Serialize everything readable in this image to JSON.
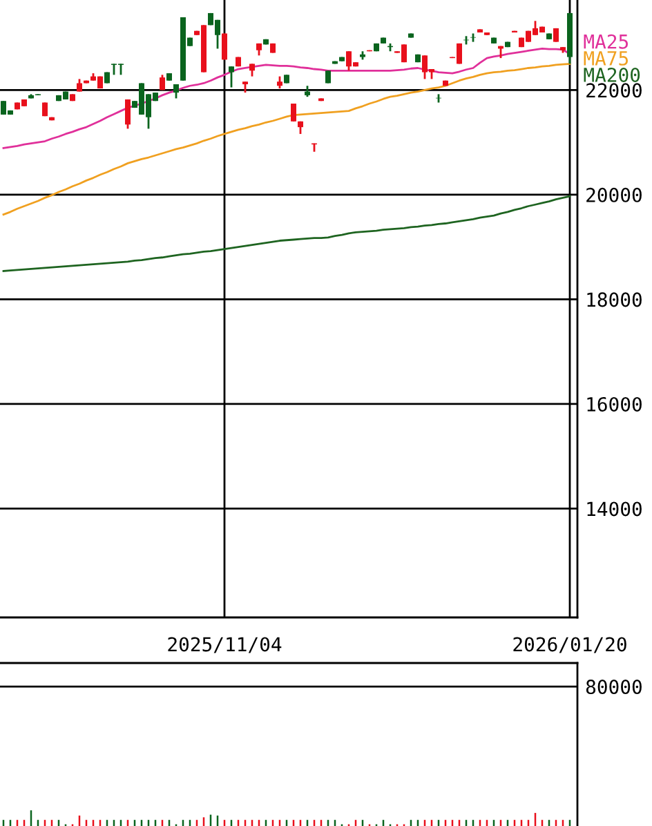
{
  "chart_data": [
    {
      "type": "candlestick",
      "categories": [
        null,
        null,
        null,
        null,
        null,
        null,
        null,
        null,
        null,
        null,
        null,
        null,
        null,
        null,
        null,
        null,
        null,
        null,
        null,
        null,
        null,
        null,
        null,
        null,
        null,
        null,
        null,
        null,
        null,
        null,
        null,
        null,
        "2025/11/04",
        null,
        null,
        null,
        null,
        null,
        null,
        null,
        null,
        null,
        null,
        null,
        null,
        null,
        null,
        null,
        null,
        null,
        null,
        null,
        null,
        null,
        null,
        null,
        null,
        null,
        null,
        null,
        null,
        null,
        null,
        null,
        null,
        null,
        null,
        null,
        null,
        null,
        null,
        null,
        null,
        null,
        null,
        null,
        null,
        null,
        null,
        null,
        null,
        null,
        "2026/01/20"
      ],
      "ohlc": [
        [
          21790,
          21790,
          21530,
          21530
        ],
        [
          21610,
          21610,
          21530,
          21530
        ],
        [
          21630,
          21760,
          21630,
          21760
        ],
        [
          21690,
          21820,
          21690,
          21820
        ],
        [
          21900,
          21920,
          21840,
          21840
        ],
        [
          21920,
          21920,
          21900,
          21900
        ],
        [
          21500,
          21760,
          21500,
          21760
        ],
        [
          21420,
          21480,
          21420,
          21480
        ],
        [
          21900,
          21900,
          21790,
          21790
        ],
        [
          21970,
          21970,
          21820,
          21820
        ],
        [
          21790,
          21920,
          21790,
          21920
        ],
        [
          21970,
          22210,
          21970,
          22130
        ],
        [
          22130,
          22180,
          22130,
          22180
        ],
        [
          22180,
          22320,
          22180,
          22260
        ],
        [
          22030,
          22260,
          22030,
          22260
        ],
        [
          22340,
          22340,
          22130,
          22130
        ],
        [
          22500,
          22500,
          22290,
          22480
        ],
        [
          22500,
          22500,
          22290,
          22480
        ],
        [
          21340,
          21820,
          21260,
          21820
        ],
        [
          21790,
          21790,
          21660,
          21660
        ],
        [
          22130,
          22130,
          21530,
          21530
        ],
        [
          21920,
          21920,
          21260,
          21480
        ],
        [
          21950,
          21950,
          21790,
          21790
        ],
        [
          22000,
          22290,
          22000,
          22240
        ],
        [
          22320,
          22320,
          22180,
          22180
        ],
        [
          22110,
          22110,
          21840,
          21950
        ],
        [
          23390,
          23390,
          22180,
          22180
        ],
        [
          23000,
          23000,
          22840,
          22840
        ],
        [
          23050,
          23130,
          23050,
          23130
        ],
        [
          22340,
          23240,
          22340,
          23240
        ],
        [
          23470,
          23470,
          23240,
          23240
        ],
        [
          23340,
          23340,
          22790,
          23050
        ],
        [
          22580,
          23080,
          22580,
          23080
        ],
        [
          22450,
          22450,
          22050,
          22340
        ],
        [
          22450,
          22630,
          22450,
          22630
        ],
        [
          22110,
          22160,
          21950,
          22160
        ],
        [
          22370,
          22500,
          22260,
          22500
        ],
        [
          22760,
          22890,
          22660,
          22890
        ],
        [
          22970,
          22970,
          22870,
          22870
        ],
        [
          22710,
          22890,
          22710,
          22890
        ],
        [
          22080,
          22260,
          22030,
          22160
        ],
        [
          22290,
          22290,
          22130,
          22130
        ],
        [
          21400,
          21740,
          21400,
          21740
        ],
        [
          21290,
          21400,
          21160,
          21400
        ],
        [
          21970,
          22080,
          21870,
          21900
        ],
        [
          20960,
          20980,
          20820,
          20980
        ],
        [
          21790,
          21840,
          21790,
          21840
        ],
        [
          22370,
          22370,
          22130,
          22130
        ],
        [
          22550,
          22550,
          22500,
          22500
        ],
        [
          22630,
          22630,
          22550,
          22550
        ],
        [
          22450,
          22740,
          22370,
          22740
        ],
        [
          22450,
          22530,
          22450,
          22530
        ],
        [
          22680,
          22740,
          22580,
          22630
        ],
        [
          22740,
          22760,
          22740,
          22760
        ],
        [
          22890,
          22890,
          22740,
          22740
        ],
        [
          23000,
          23000,
          22890,
          22890
        ],
        [
          22840,
          22890,
          22740,
          22820
        ],
        [
          22710,
          22740,
          22710,
          22740
        ],
        [
          22530,
          22870,
          22530,
          22870
        ],
        [
          23080,
          23080,
          23000,
          23000
        ],
        [
          22680,
          22680,
          22530,
          22530
        ],
        [
          22340,
          22660,
          22210,
          22660
        ],
        [
          22340,
          22400,
          22210,
          22400
        ],
        [
          21850,
          21920,
          21760,
          21840
        ],
        [
          22080,
          22180,
          22080,
          22180
        ],
        [
          22610,
          22630,
          22610,
          22630
        ],
        [
          22500,
          22890,
          22500,
          22890
        ],
        [
          22960,
          23030,
          22870,
          22950
        ],
        [
          23010,
          23080,
          22920,
          23000
        ],
        [
          23100,
          23160,
          23100,
          23160
        ],
        [
          23050,
          23100,
          23050,
          23100
        ],
        [
          23000,
          23000,
          22890,
          22890
        ],
        [
          22790,
          22840,
          22610,
          22840
        ],
        [
          22920,
          22920,
          22820,
          22820
        ],
        [
          23100,
          23130,
          23100,
          23130
        ],
        [
          22820,
          23000,
          22820,
          23000
        ],
        [
          22920,
          23130,
          22920,
          23130
        ],
        [
          23050,
          23320,
          23050,
          23180
        ],
        [
          23100,
          23210,
          23100,
          23210
        ],
        [
          23080,
          23080,
          22970,
          22970
        ],
        [
          22920,
          23180,
          22920,
          23180
        ],
        [
          22760,
          22820,
          22710,
          22820
        ],
        [
          23470,
          23470,
          22500,
          22630
        ]
      ],
      "colors": [
        "#0a641e",
        "#0a641e",
        "#e8101c",
        "#e8101c",
        "#0a641e",
        "#0a641e",
        "#e8101c",
        "#e8101c",
        "#0a641e",
        "#0a641e",
        "#e8101c",
        "#e8101c",
        "#e8101c",
        "#e8101c",
        "#e8101c",
        "#0a641e",
        "#0a641e",
        "#0a641e",
        "#e8101c",
        "#0a641e",
        "#0a641e",
        "#0a641e",
        "#0a641e",
        "#e8101c",
        "#0a641e",
        "#0a641e",
        "#0a641e",
        "#0a641e",
        "#e8101c",
        "#e8101c",
        "#0a641e",
        "#0a641e",
        "#e8101c",
        "#0a641e",
        "#e8101c",
        "#e8101c",
        "#e8101c",
        "#e8101c",
        "#0a641e",
        "#e8101c",
        "#e8101c",
        "#0a641e",
        "#e8101c",
        "#e8101c",
        "#0a641e",
        "#e8101c",
        "#e8101c",
        "#0a641e",
        "#0a641e",
        "#0a641e",
        "#e8101c",
        "#e8101c",
        "#0a641e",
        "#e8101c",
        "#0a641e",
        "#0a641e",
        "#0a641e",
        "#e8101c",
        "#e8101c",
        "#0a641e",
        "#0a641e",
        "#e8101c",
        "#e8101c",
        "#0a641e",
        "#e8101c",
        "#e8101c",
        "#e8101c",
        "#0a641e",
        "#0a641e",
        "#e8101c",
        "#e8101c",
        "#0a641e",
        "#e8101c",
        "#0a641e",
        "#e8101c",
        "#e8101c",
        "#e8101c",
        "#e8101c",
        "#e8101c",
        "#0a641e",
        "#e8101c",
        "#e8101c",
        "#0a641e"
      ],
      "series": [
        {
          "type": "line",
          "name": "MA25",
          "color": "#e0309a",
          "values": [
            20890,
            20910,
            20930,
            20960,
            20980,
            21000,
            21020,
            21070,
            21110,
            21160,
            21200,
            21250,
            21290,
            21350,
            21410,
            21480,
            21540,
            21600,
            21660,
            21700,
            21740,
            21790,
            21840,
            21900,
            21950,
            21990,
            22040,
            22080,
            22100,
            22130,
            22180,
            22240,
            22290,
            22350,
            22400,
            22420,
            22440,
            22460,
            22480,
            22470,
            22460,
            22460,
            22450,
            22430,
            22420,
            22400,
            22390,
            22370,
            22370,
            22370,
            22370,
            22370,
            22370,
            22370,
            22370,
            22370,
            22370,
            22380,
            22390,
            22410,
            22420,
            22390,
            22370,
            22340,
            22330,
            22320,
            22350,
            22390,
            22420,
            22520,
            22610,
            22640,
            22660,
            22690,
            22710,
            22730,
            22750,
            22770,
            22790,
            22780,
            22780,
            22770,
            22690
          ]
        },
        {
          "type": "line",
          "name": "MA75",
          "color": "#f0a020",
          "values": [
            19620,
            19670,
            19730,
            19780,
            19830,
            19880,
            19940,
            19990,
            20050,
            20100,
            20160,
            20210,
            20270,
            20320,
            20380,
            20430,
            20490,
            20540,
            20600,
            20640,
            20680,
            20710,
            20750,
            20790,
            20830,
            20870,
            20900,
            20940,
            20980,
            21030,
            21070,
            21120,
            21160,
            21200,
            21240,
            21270,
            21310,
            21340,
            21380,
            21410,
            21450,
            21490,
            21520,
            21530,
            21540,
            21550,
            21560,
            21570,
            21580,
            21590,
            21600,
            21650,
            21690,
            21740,
            21780,
            21830,
            21870,
            21890,
            21920,
            21950,
            21970,
            22000,
            22030,
            22050,
            22080,
            22130,
            22180,
            22220,
            22250,
            22290,
            22320,
            22340,
            22350,
            22370,
            22380,
            22400,
            22420,
            22430,
            22450,
            22460,
            22480,
            22490,
            22500
          ]
        },
        {
          "type": "line",
          "name": "MA200",
          "color": "#1e6420",
          "values": [
            18540,
            18550,
            18560,
            18570,
            18580,
            18590,
            18600,
            18610,
            18620,
            18630,
            18640,
            18650,
            18660,
            18670,
            18680,
            18690,
            18700,
            18710,
            18720,
            18740,
            18750,
            18770,
            18790,
            18800,
            18820,
            18840,
            18860,
            18870,
            18890,
            18910,
            18920,
            18940,
            18960,
            18980,
            19000,
            19020,
            19040,
            19060,
            19080,
            19100,
            19120,
            19130,
            19140,
            19150,
            19160,
            19170,
            19170,
            19180,
            19210,
            19230,
            19260,
            19280,
            19290,
            19300,
            19310,
            19330,
            19340,
            19350,
            19360,
            19380,
            19390,
            19410,
            19420,
            19440,
            19450,
            19470,
            19490,
            19510,
            19530,
            19560,
            19580,
            19600,
            19640,
            19670,
            19710,
            19740,
            19780,
            19810,
            19840,
            19870,
            19910,
            19940,
            19970
          ]
        }
      ],
      "ylim": [
        11920,
        23720
      ],
      "yticks": [
        14000,
        16000,
        18000,
        20000,
        22000
      ],
      "grid": true,
      "legend": "right"
    },
    {
      "type": "bar",
      "categories": [
        null,
        null,
        null,
        null,
        null,
        null,
        null,
        null,
        null,
        null,
        null,
        null,
        null,
        null,
        null,
        null,
        null,
        null,
        null,
        null,
        null,
        null,
        null,
        null,
        null,
        null,
        null,
        null,
        null,
        null,
        null,
        null,
        null,
        null,
        null,
        null,
        null,
        null,
        null,
        null,
        null,
        null,
        null,
        null,
        null,
        null,
        null,
        null,
        null,
        null,
        null,
        null,
        null,
        null,
        null,
        null,
        null,
        null,
        null,
        null,
        null,
        null,
        null,
        null,
        null,
        null,
        null,
        null,
        null,
        null,
        null,
        null,
        null,
        null,
        null,
        null,
        null,
        null,
        null,
        null,
        null,
        null,
        null
      ],
      "values": [
        3500,
        3500,
        3500,
        3500,
        9000,
        3500,
        3500,
        3500,
        3500,
        1000,
        1000,
        6000,
        3500,
        3500,
        3500,
        3500,
        3500,
        3500,
        3500,
        3500,
        3500,
        3500,
        3500,
        3500,
        3500,
        1000,
        3500,
        3500,
        3500,
        5000,
        6500,
        6000,
        3500,
        3500,
        3500,
        3500,
        3500,
        3500,
        3500,
        3500,
        3500,
        3500,
        3500,
        3500,
        3500,
        3500,
        3500,
        3500,
        3500,
        1000,
        1000,
        3500,
        3500,
        1000,
        1000,
        3500,
        1000,
        1000,
        1000,
        3500,
        3500,
        3500,
        3500,
        3500,
        3500,
        3500,
        3500,
        3500,
        3500,
        3500,
        3500,
        3500,
        3500,
        3500,
        3500,
        3500,
        3500,
        7500,
        3500,
        3500,
        3500,
        3500,
        3500
      ],
      "colors": [
        "#0a641e",
        "#0a641e",
        "#e8101c",
        "#e8101c",
        "#0a641e",
        "#0a641e",
        "#e8101c",
        "#e8101c",
        "#0a641e",
        "#0a641e",
        "#e8101c",
        "#e8101c",
        "#e8101c",
        "#e8101c",
        "#e8101c",
        "#0a641e",
        "#0a641e",
        "#0a641e",
        "#e8101c",
        "#0a641e",
        "#0a641e",
        "#0a641e",
        "#0a641e",
        "#e8101c",
        "#0a641e",
        "#0a641e",
        "#0a641e",
        "#0a641e",
        "#e8101c",
        "#e8101c",
        "#0a641e",
        "#0a641e",
        "#e8101c",
        "#0a641e",
        "#e8101c",
        "#e8101c",
        "#e8101c",
        "#e8101c",
        "#0a641e",
        "#e8101c",
        "#e8101c",
        "#0a641e",
        "#e8101c",
        "#e8101c",
        "#0a641e",
        "#e8101c",
        "#e8101c",
        "#0a641e",
        "#0a641e",
        "#0a641e",
        "#e8101c",
        "#e8101c",
        "#0a641e",
        "#e8101c",
        "#0a641e",
        "#0a641e",
        "#0a641e",
        "#e8101c",
        "#e8101c",
        "#0a641e",
        "#0a641e",
        "#e8101c",
        "#e8101c",
        "#0a641e",
        "#e8101c",
        "#e8101c",
        "#e8101c",
        "#0a641e",
        "#0a641e",
        "#e8101c",
        "#e8101c",
        "#0a641e",
        "#e8101c",
        "#0a641e",
        "#e8101c",
        "#e8101c",
        "#e8101c",
        "#e8101c",
        "#e8101c",
        "#0a641e",
        "#e8101c",
        "#e8101c",
        "#0a641e"
      ],
      "ylim": [
        0,
        93500
      ],
      "yticks": [
        80000
      ],
      "grid": "y"
    }
  ]
}
